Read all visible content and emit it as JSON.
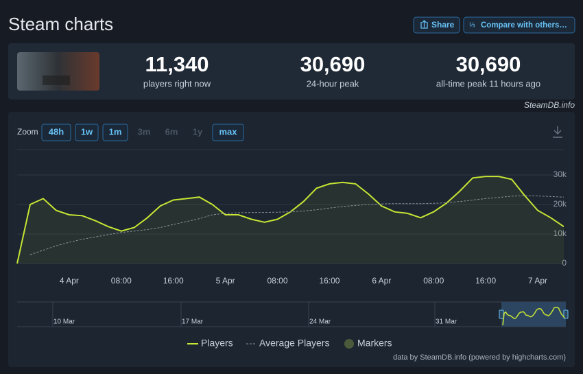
{
  "header": {
    "title": "Steam charts",
    "buttons": [
      "Share",
      "Compare with others…"
    ]
  },
  "stats": [
    {
      "value": "11,340",
      "label": "players right now"
    },
    {
      "value": "30,690",
      "label": "24-hour peak"
    },
    {
      "value": "30,690",
      "label": "all-time peak 11 hours ago"
    }
  ],
  "watermark": "SteamDB.info",
  "zoom": {
    "label": "Zoom",
    "options": [
      {
        "label": "48h",
        "enabled": true
      },
      {
        "label": "1w",
        "enabled": true
      },
      {
        "label": "1m",
        "enabled": true
      },
      {
        "label": "3m",
        "enabled": false
      },
      {
        "label": "6m",
        "enabled": false
      },
      {
        "label": "1y",
        "enabled": false
      },
      {
        "label": "max",
        "enabled": true
      }
    ]
  },
  "chart_data": {
    "type": "line",
    "categories": [
      null,
      null,
      null,
      null,
      "4 Apr",
      null,
      null,
      null,
      "08:00",
      null,
      null,
      null,
      "16:00",
      null,
      null,
      null,
      "5 Apr",
      null,
      null,
      null,
      "08:00",
      null,
      null,
      null,
      "16:00",
      null,
      null,
      null,
      "6 Apr",
      null,
      null,
      null,
      "08:00",
      null,
      null,
      null,
      "16:00",
      null,
      null,
      null,
      "7 Apr",
      null,
      null
    ],
    "series": [
      {
        "name": "Players",
        "color": "#c6e534",
        "values": [
          0,
          20000,
          22000,
          18000,
          16500,
          16200,
          14500,
          12500,
          11000,
          12200,
          15500,
          19500,
          21500,
          22000,
          22500,
          20000,
          16500,
          16500,
          15000,
          14000,
          15000,
          17500,
          21000,
          25500,
          27000,
          27500,
          27000,
          23500,
          19500,
          17500,
          17000,
          15500,
          17500,
          20500,
          24500,
          29000,
          29500,
          29500,
          28500,
          23000,
          18000,
          15500,
          12500
        ]
      },
      {
        "name": "Average Players",
        "color": "#8a9099",
        "values": [
          null,
          3000,
          4500,
          6000,
          7200,
          8200,
          9000,
          9800,
          10500,
          11000,
          11500,
          12200,
          13200,
          14200,
          15200,
          16500,
          17000,
          17200,
          17300,
          17300,
          17400,
          17500,
          17800,
          18200,
          18800,
          19300,
          19700,
          20000,
          20200,
          20300,
          20300,
          20300,
          20400,
          20600,
          21000,
          21500,
          22000,
          22400,
          22800,
          23000,
          22900,
          22700,
          22500
        ]
      }
    ],
    "markers_label": "Markers",
    "markers_color": "#4b5a3a",
    "ylim": [
      0,
      38600
    ],
    "yticks": [
      0,
      {
        "value": 10000,
        "label": "10k"
      },
      {
        "value": 20000,
        "label": "20k"
      },
      {
        "value": 30000,
        "label": "30k"
      }
    ],
    "grid": true
  },
  "navigator": {
    "labels": [
      "10 Mar",
      "17 Mar",
      "24 Mar",
      "31 Mar"
    ]
  },
  "credits": "data by SteamDB.info (powered by highcharts.com)"
}
